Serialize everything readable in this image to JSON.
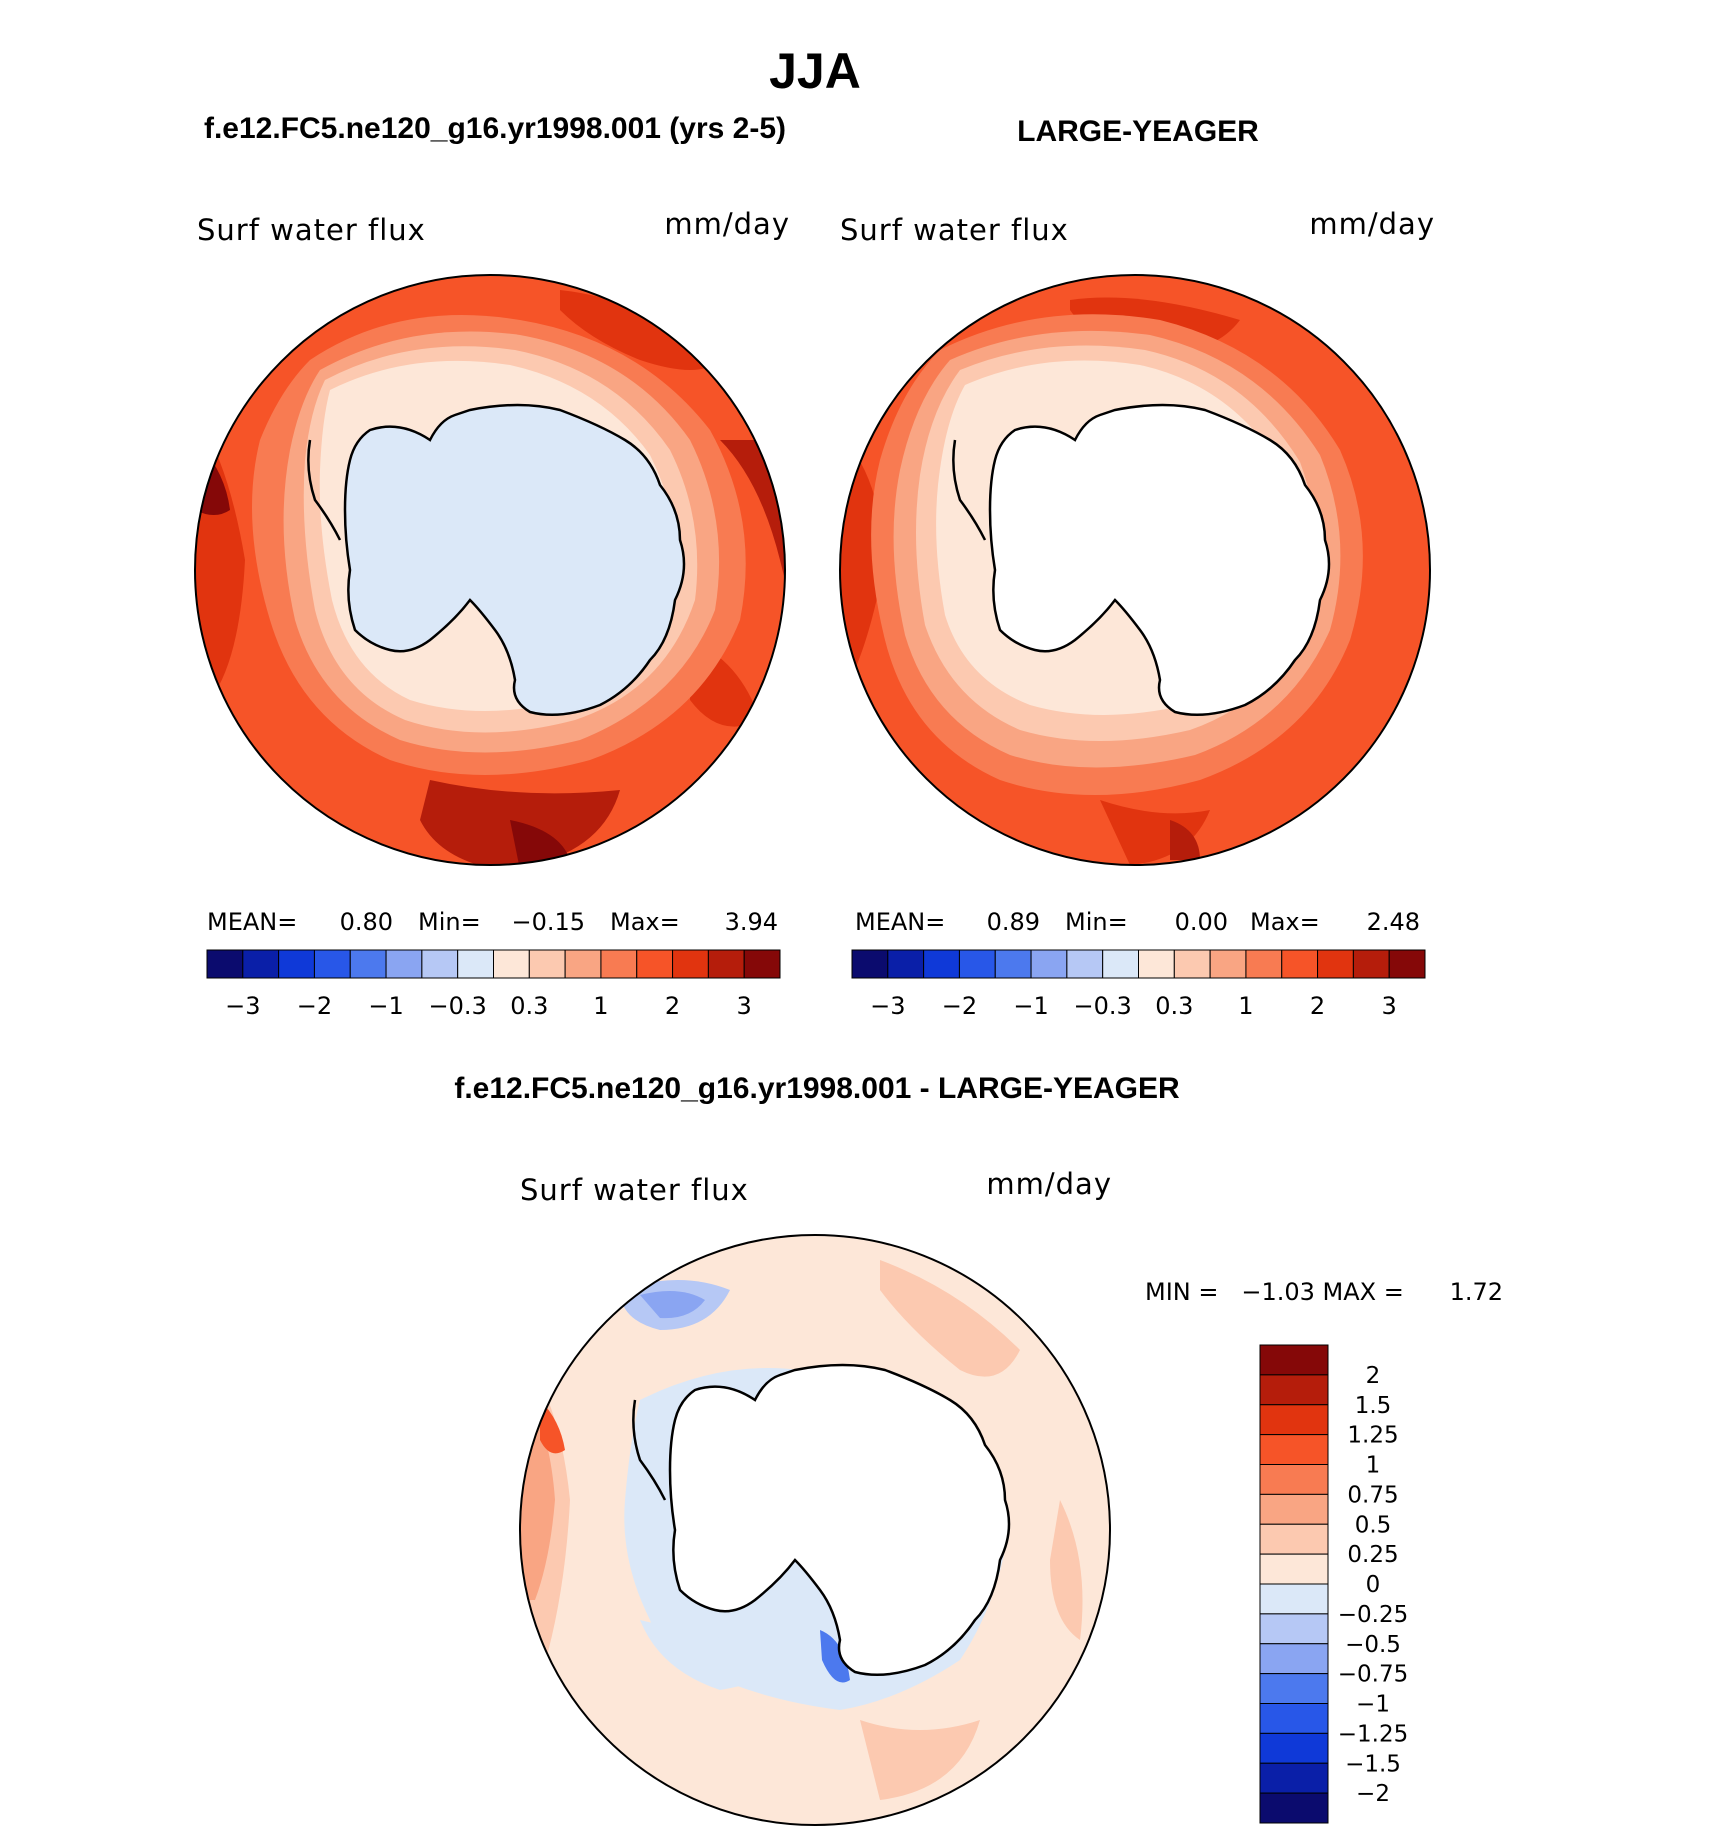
{
  "figure": {
    "title": "JJA",
    "left_panel_title": "f.e12.FC5.ne120_g16.yr1998.001 (yrs 2-5)",
    "right_panel_title": "LARGE-YEAGER",
    "diff_panel_title": "f.e12.FC5.ne120_g16.yr1998.001 - LARGE-YEAGER"
  },
  "panels": {
    "left": {
      "variable": "Surf water flux",
      "units": "mm/day",
      "mean_label": "MEAN=",
      "mean": "0.80",
      "min_label": "Min=",
      "min": "−0.15",
      "max_label": "Max=",
      "max": "3.94"
    },
    "right": {
      "variable": "Surf water flux",
      "units": "mm/day",
      "mean_label": "MEAN=",
      "mean": "0.89",
      "min_label": "Min=",
      "min": "0.00",
      "max_label": "Max=",
      "max": "2.48"
    },
    "diff": {
      "variable": "Surf water flux",
      "units": "mm/day",
      "minmax_text": "MIN =   −1.03 MAX =      1.72"
    }
  },
  "colorbars": {
    "abs": {
      "colors": [
        "#0b0b6e",
        "#0a1fa8",
        "#0f39d8",
        "#2857e8",
        "#4c79ee",
        "#8aa5f2",
        "#b6c8f5",
        "#dbe8f8",
        "#fde7d8",
        "#fcc9b0",
        "#f9a583",
        "#f87b52",
        "#f65428",
        "#e1340f",
        "#b51d0b",
        "#850808"
      ],
      "tick_labels": [
        "−3",
        "−2",
        "−1",
        "−0.3",
        "0.3",
        "1",
        "2",
        "3"
      ],
      "tick_boundaries": [
        1,
        3,
        5,
        7,
        9,
        11,
        13,
        15
      ]
    },
    "diff": {
      "colors": [
        "#850808",
        "#b51d0b",
        "#e1340f",
        "#f65428",
        "#f87b52",
        "#f9a583",
        "#fcc9b0",
        "#fde7d8",
        "#dbe8f8",
        "#b6c8f5",
        "#8aa5f2",
        "#4c79ee",
        "#2857e8",
        "#0f39d8",
        "#0a1fa8",
        "#0b0b6e"
      ],
      "labels": [
        "2",
        "1.5",
        "1.25",
        "1",
        "0.75",
        "0.5",
        "0.25",
        "0",
        "−0.25",
        "−0.5",
        "−0.75",
        "−1",
        "−1.25",
        "−1.5",
        "−2"
      ]
    }
  }
}
